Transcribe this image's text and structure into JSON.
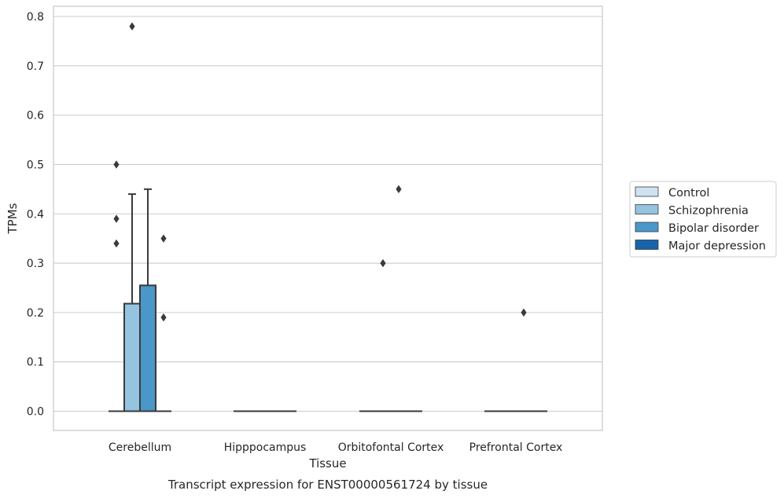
{
  "chart_data": {
    "type": "box",
    "title": "Transcript expression for ENST00000561724 by tissue",
    "xlabel": "Tissue",
    "ylabel": "TPMs",
    "ylim": [
      -0.04,
      0.82
    ],
    "yticks": [
      "0.0",
      "0.1",
      "0.2",
      "0.3",
      "0.4",
      "0.5",
      "0.6",
      "0.7",
      "0.8"
    ],
    "grid": "horizontal",
    "legend_position": "right",
    "categories": [
      "Cerebellum",
      "Hipppocampus",
      "Orbitofontal Cortex",
      "Prefrontal Cortex"
    ],
    "series": [
      {
        "name": "Control",
        "color": "#d0e1f2",
        "boxes": [
          {
            "category": "Cerebellum",
            "min": 0,
            "q1": 0,
            "median": 0,
            "q3": 0,
            "max": 0,
            "outliers": [
              0.5,
              0.39,
              0.34
            ]
          },
          {
            "category": "Hipppocampus",
            "min": 0,
            "q1": 0,
            "median": 0,
            "q3": 0,
            "max": 0,
            "outliers": []
          },
          {
            "category": "Orbitofontal Cortex",
            "min": 0,
            "q1": 0,
            "median": 0,
            "q3": 0,
            "max": 0,
            "outliers": []
          },
          {
            "category": "Prefrontal Cortex",
            "min": 0,
            "q1": 0,
            "median": 0,
            "q3": 0,
            "max": 0,
            "outliers": []
          }
        ]
      },
      {
        "name": "Schizophrenia",
        "color": "#94c4df",
        "boxes": [
          {
            "category": "Cerebellum",
            "min": 0,
            "q1": 0,
            "median": 0,
            "q3": 0.218,
            "max": 0.44,
            "outliers": [
              0.78
            ]
          },
          {
            "category": "Hipppocampus",
            "min": 0,
            "q1": 0,
            "median": 0,
            "q3": 0,
            "max": 0,
            "outliers": []
          },
          {
            "category": "Orbitofontal Cortex",
            "min": 0,
            "q1": 0,
            "median": 0,
            "q3": 0,
            "max": 0,
            "outliers": [
              0.3
            ]
          },
          {
            "category": "Prefrontal Cortex",
            "min": 0,
            "q1": 0,
            "median": 0,
            "q3": 0,
            "max": 0,
            "outliers": []
          }
        ]
      },
      {
        "name": "Bipolar disorder",
        "color": "#4a98c9",
        "boxes": [
          {
            "category": "Cerebellum",
            "min": 0,
            "q1": 0,
            "median": 0,
            "q3": 0.255,
            "max": 0.45,
            "outliers": []
          },
          {
            "category": "Hipppocampus",
            "min": 0,
            "q1": 0,
            "median": 0,
            "q3": 0,
            "max": 0,
            "outliers": []
          },
          {
            "category": "Orbitofontal Cortex",
            "min": 0,
            "q1": 0,
            "median": 0,
            "q3": 0,
            "max": 0,
            "outliers": [
              0.45
            ]
          },
          {
            "category": "Prefrontal Cortex",
            "min": 0,
            "q1": 0,
            "median": 0,
            "q3": 0,
            "max": 0,
            "outliers": [
              0.2
            ]
          }
        ]
      },
      {
        "name": "Major depression",
        "color": "#1764ab",
        "boxes": [
          {
            "category": "Cerebellum",
            "min": 0,
            "q1": 0,
            "median": 0,
            "q3": 0,
            "max": 0,
            "outliers": [
              0.35,
              0.19
            ]
          },
          {
            "category": "Hipppocampus",
            "min": 0,
            "q1": 0,
            "median": 0,
            "q3": 0,
            "max": 0,
            "outliers": []
          },
          {
            "category": "Orbitofontal Cortex",
            "min": 0,
            "q1": 0,
            "median": 0,
            "q3": 0,
            "max": 0,
            "outliers": []
          },
          {
            "category": "Prefrontal Cortex",
            "min": 0,
            "q1": 0,
            "median": 0,
            "q3": 0,
            "max": 0,
            "outliers": []
          }
        ]
      }
    ]
  },
  "colors": {
    "grid": "#cccccc",
    "frame": "#cccccc",
    "box_edge": "#3a3a3a"
  }
}
